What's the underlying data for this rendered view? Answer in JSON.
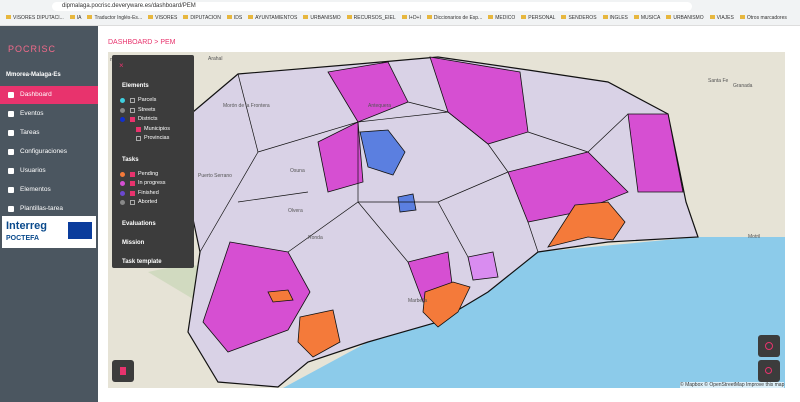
{
  "browser": {
    "url": "dipmalaga.pocrisc.deveryware.es/dashboard/PEM",
    "bookmarks": [
      "VISORES DIPUTACI...",
      "IA",
      "Traductor Inglés-Es...",
      "VISORES",
      "DIPUTACION",
      "IDS",
      "AYUNTAMIENTOS",
      "URBANISMO",
      "RECURSOS_EIEL",
      "I+D+I",
      "Diccionarios de Esp...",
      "MEDICO",
      "PERSONAL",
      "SENDEROS",
      "INGLES",
      "MUSICA",
      "URBANISMO",
      "VIAJES",
      "Otros marcadores"
    ]
  },
  "sidebar": {
    "logo": "POCRISC",
    "organization": "Mmorea-Malaga-Es",
    "nav": [
      "Dashboard",
      "Eventos",
      "Tareas",
      "Configuraciones",
      "Usuarios",
      "Elementos",
      "Plantillas-tarea"
    ],
    "partner": {
      "name": "Interreg",
      "program": "POCTEFA"
    }
  },
  "breadcrumb": [
    "DASHBOARD",
    "PEM"
  ],
  "panel": {
    "elements": {
      "title": "Elements",
      "items": [
        "Parcels",
        "Streets",
        "Districts",
        "Municipios",
        "Provincias"
      ]
    },
    "tasks": {
      "title": "Tasks",
      "items": [
        "Pending",
        "In progress",
        "Finished",
        "Aborted"
      ]
    },
    "sections": [
      "Evaluations",
      "Mission",
      "Task template"
    ]
  },
  "map": {
    "places": [
      "manas",
      "Arahal",
      "Morón de la Frontera",
      "Osuna",
      "Antequera",
      "Santa Fe",
      "Granada",
      "Olvera",
      "Ronda",
      "Puerto Serrano",
      "Marbella",
      "Motril"
    ],
    "attribution": "© Mapbox © OpenStreetMap Improve this map"
  }
}
